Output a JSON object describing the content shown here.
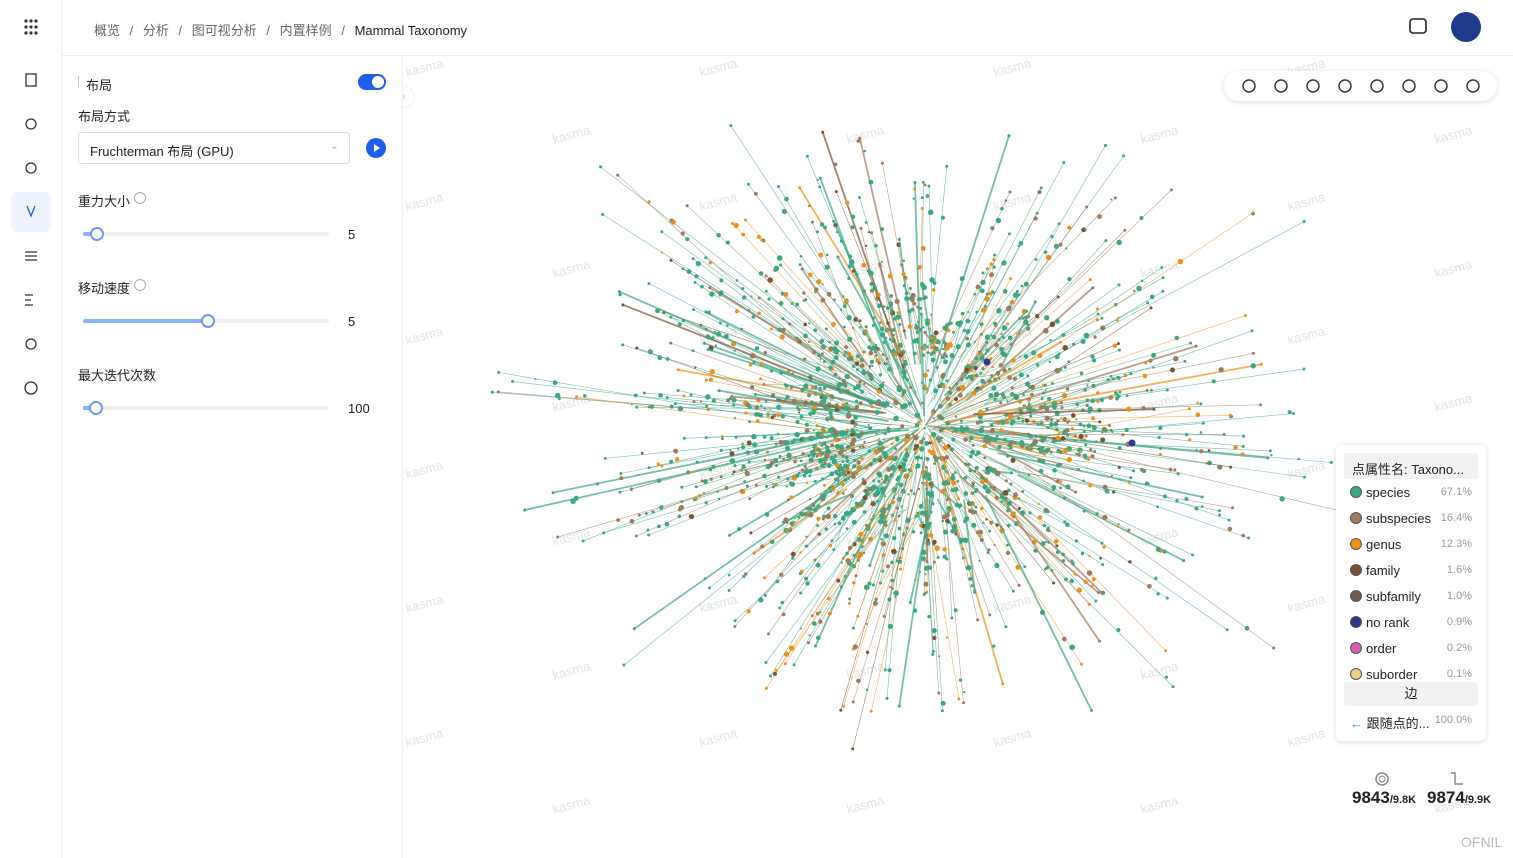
{
  "header": {
    "breadcrumb": [
      "概览",
      "分析",
      "图可视分析",
      "内置样例",
      "Mammal Taxonomy"
    ]
  },
  "layout_panel": {
    "title": "布局",
    "method_label": "布局方式",
    "method": "Fruchterman 布局 (GPU)",
    "params": [
      {
        "label": "重力大小",
        "value": "5"
      },
      {
        "label": "移动速度",
        "value": "5"
      },
      {
        "label": "最大迭代次数",
        "value": "100"
      }
    ]
  },
  "legend": {
    "node_title": "点属性名: Taxono...",
    "nodes": [
      {
        "name": "species",
        "percent": "67.1%",
        "color": "#3aa882"
      },
      {
        "name": "subspecies",
        "percent": "16.4%",
        "color": "#a07a5a"
      },
      {
        "name": "genus",
        "percent": "12.3%",
        "color": "#f0901a"
      },
      {
        "name": "family",
        "percent": "1.6%",
        "color": "#7a5230"
      },
      {
        "name": "subfamily",
        "percent": "1.0%",
        "color": "#6b5e4e"
      },
      {
        "name": "no rank",
        "percent": "0.9%",
        "color": "#2a3a8a"
      },
      {
        "name": "order",
        "percent": "0.2%",
        "color": "#d860b0"
      },
      {
        "name": "suborder",
        "percent": "0.1%",
        "color": "#f0d080"
      }
    ],
    "edge_title": "边",
    "edges": [
      {
        "name": "跟随点的...",
        "percent": "100.0%"
      }
    ]
  },
  "stats": {
    "nodes": "9843",
    "nodes_total": "/9.8K",
    "edges": "9874",
    "edges_total": "/9.9K"
  },
  "watermark": "kasma",
  "footer": "OFNIL"
}
